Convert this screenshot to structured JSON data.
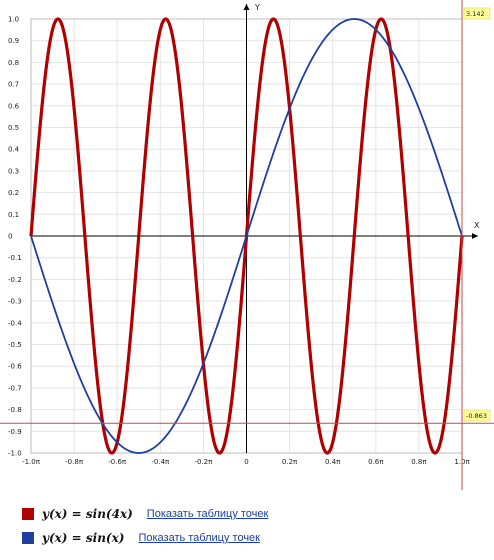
{
  "chart_data": {
    "type": "line",
    "x_label": "X",
    "y_label": "Y",
    "x_range_pi": [
      -1.0,
      1.0
    ],
    "y_range": [
      -1.0,
      1.0
    ],
    "x_ticks": [
      "-1.0π",
      "-0.8π",
      "-0.6π",
      "-0.4π",
      "-0.2π",
      "0",
      "0.2π",
      "0.4π",
      "0.6π",
      "0.8π",
      "1.0π"
    ],
    "y_ticks": [
      "1.0",
      "0.9",
      "0.8",
      "0.7",
      "0.6",
      "0.5",
      "0.4",
      "0.3",
      "0.2",
      "0.1",
      "0",
      "-0.1",
      "-0.2",
      "-0.3",
      "-0.4",
      "-0.5",
      "-0.6",
      "-0.7",
      "-0.8",
      "-0.9",
      "-1.0"
    ],
    "grid": true,
    "series": [
      {
        "name": "y(x) = sin(4x)",
        "k": 4,
        "color": "#b00000"
      },
      {
        "name": "y(x) = sin(x)",
        "k": 1,
        "color": "#1f3fa0"
      }
    ],
    "guide_x_value": "3.142",
    "guide_y_value": "-0.863"
  },
  "legend": [
    {
      "formula": "y(x) = sin(4x)",
      "link": "Показать таблицу точек",
      "color": "#b00000"
    },
    {
      "formula": "y(x) = sin(x)",
      "link": "Показать таблицу точек",
      "color": "#1f3fa0"
    }
  ]
}
